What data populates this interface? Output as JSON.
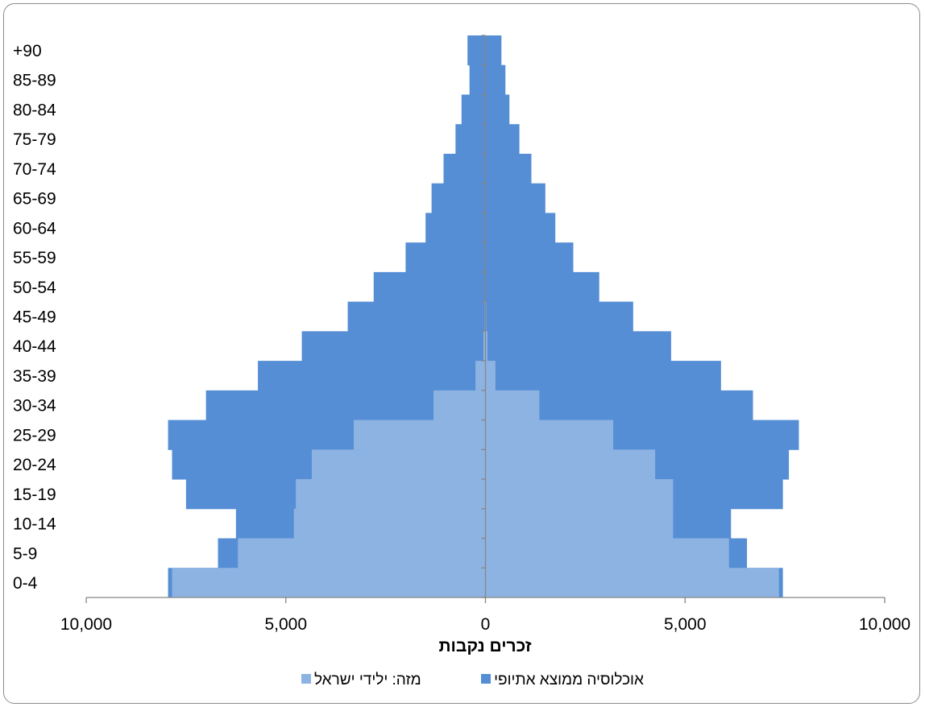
{
  "chart_data": {
    "type": "bar",
    "orientation": "horizontal",
    "layout": "population-pyramid",
    "categories": [
      "0-4",
      "5-9",
      "10-14",
      "15-19",
      "20-24",
      "25-29",
      "30-34",
      "35-39",
      "40-44",
      "45-49",
      "50-54",
      "55-59",
      "60-64",
      "65-69",
      "70-74",
      "75-79",
      "80-84",
      "85-89",
      "+90"
    ],
    "xlabel": "זכרים נקבות",
    "xlim": [
      -10000,
      10000
    ],
    "x_ticks": [
      -10000,
      -5000,
      0,
      5000,
      10000
    ],
    "x_tick_labels": [
      "10,000",
      "5,000",
      "0",
      "5,000",
      "10,000"
    ],
    "legend_position": "bottom",
    "grid": false,
    "series": [
      {
        "name": "אוכלוסיה ממוצא אתיופי",
        "color": "#558ed5",
        "side_note": "total",
        "left_values": [
          7950,
          6700,
          6250,
          7500,
          7850,
          7950,
          7000,
          5700,
          4600,
          3450,
          2800,
          2000,
          1500,
          1350,
          1050,
          750,
          600,
          400,
          450
        ],
        "right_values": [
          7450,
          6550,
          6150,
          7450,
          7600,
          7850,
          6700,
          5900,
          4650,
          3700,
          2850,
          2200,
          1750,
          1500,
          1150,
          850,
          600,
          500,
          400
        ]
      },
      {
        "name": "מזה: ילידי ישראל",
        "color": "#8db3e2",
        "side_note": "subset",
        "left_values": [
          7850,
          6200,
          4800,
          4750,
          4350,
          3300,
          1300,
          250,
          50,
          20,
          10,
          5,
          0,
          0,
          0,
          0,
          0,
          0,
          0
        ],
        "right_values": [
          7350,
          6100,
          4700,
          4700,
          4250,
          3200,
          1350,
          250,
          50,
          20,
          10,
          5,
          0,
          0,
          0,
          0,
          0,
          0,
          0
        ]
      }
    ]
  }
}
